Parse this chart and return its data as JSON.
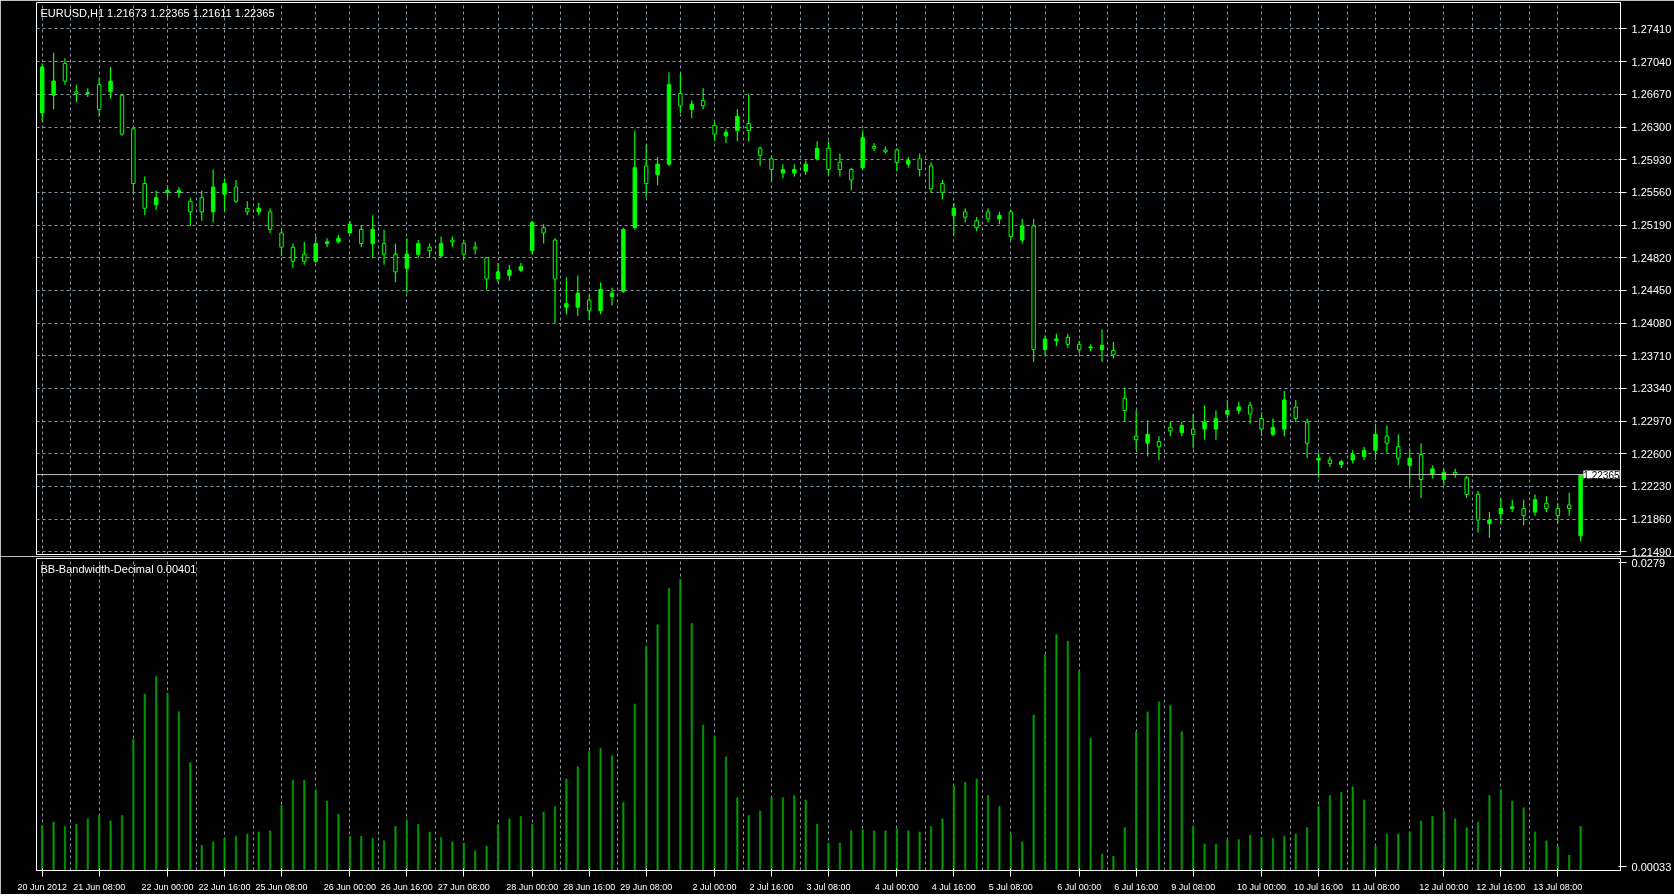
{
  "chart_data": [
    {
      "type": "candlestick",
      "title": "EURUSD,H1  1.21673 1.22365 1.21611 1.22365",
      "color": "#00ff00",
      "categories": [
        null,
        null,
        null,
        null,
        null,
        null,
        null,
        null,
        null,
        null,
        null,
        null,
        null,
        null,
        null,
        null,
        null,
        null,
        null,
        null,
        null,
        null,
        null,
        null,
        null,
        null,
        null,
        null,
        null,
        null,
        null,
        null,
        null,
        null,
        null,
        null,
        null,
        null,
        null,
        null,
        null,
        null,
        null,
        null,
        null,
        null,
        null,
        null,
        null,
        null,
        null,
        null,
        null,
        null,
        null,
        null,
        null,
        null,
        null,
        null,
        null,
        null,
        null,
        null,
        null,
        null,
        null,
        null,
        null,
        null,
        null,
        null,
        null,
        null,
        null,
        null,
        null,
        null,
        null,
        null,
        null,
        null,
        null,
        null,
        null,
        null,
        null,
        null,
        null,
        null,
        null,
        null,
        null,
        null,
        null,
        null,
        null,
        null,
        null,
        null,
        null,
        null,
        null,
        null,
        null,
        null,
        null,
        null,
        null,
        null,
        null,
        null,
        null,
        null,
        null,
        null,
        null,
        null,
        null,
        null,
        null,
        null,
        null,
        null,
        null,
        null,
        null,
        null,
        null,
        null,
        null,
        null,
        null,
        null,
        null,
        null
      ],
      "ohlc": [
        [
          1.2646,
          1.2702,
          1.2636,
          1.2698
        ],
        [
          1.2666,
          1.2714,
          1.265,
          1.2682
        ],
        [
          1.2702,
          1.2708,
          1.2678,
          1.2682
        ],
        [
          1.267,
          1.2678,
          1.2658,
          1.2668
        ],
        [
          1.2668,
          1.2674,
          1.2664,
          1.2669
        ],
        [
          1.2678,
          1.2686,
          1.2642,
          1.265
        ],
        [
          1.267,
          1.2698,
          1.2662,
          1.2682
        ],
        [
          1.2666,
          1.2668,
          1.262,
          1.2622
        ],
        [
          1.2628,
          1.263,
          1.2554,
          1.2566
        ],
        [
          1.2566,
          1.2574,
          1.253,
          1.2538
        ],
        [
          1.2542,
          1.2558,
          1.2536,
          1.255
        ],
        [
          1.2556,
          1.2564,
          1.255,
          1.2558
        ],
        [
          1.2556,
          1.2562,
          1.255,
          1.2558
        ],
        [
          1.2546,
          1.255,
          1.2518,
          1.2534
        ],
        [
          1.255,
          1.2558,
          1.2524,
          1.2534
        ],
        [
          1.2534,
          1.2582,
          1.2522,
          1.2562
        ],
        [
          1.2554,
          1.2572,
          1.2534,
          1.2566
        ],
        [
          1.2562,
          1.257,
          1.2544,
          1.2546
        ],
        [
          1.2538,
          1.2546,
          1.253,
          1.2534
        ],
        [
          1.2534,
          1.2544,
          1.253,
          1.2538
        ],
        [
          1.2534,
          1.2538,
          1.251,
          1.2514
        ],
        [
          1.251,
          1.2514,
          1.2484,
          1.2494
        ],
        [
          1.2494,
          1.2498,
          1.247,
          1.2478
        ],
        [
          1.2486,
          1.25,
          1.2474,
          1.2478
        ],
        [
          1.2478,
          1.2506,
          1.2476,
          1.2498
        ],
        [
          1.2498,
          1.2504,
          1.2494,
          1.25
        ],
        [
          1.25,
          1.2508,
          1.2498,
          1.2504
        ],
        [
          1.251,
          1.2524,
          1.251,
          1.252
        ],
        [
          1.2514,
          1.2518,
          1.2494,
          1.2498
        ],
        [
          1.2498,
          1.253,
          1.2482,
          1.2514
        ],
        [
          1.2498,
          1.2514,
          1.2474,
          1.2486
        ],
        [
          1.2486,
          1.2498,
          1.2454,
          1.2466
        ],
        [
          1.247,
          1.2504,
          1.2442,
          1.2486
        ],
        [
          1.2486,
          1.2502,
          1.2482,
          1.2498
        ],
        [
          1.2494,
          1.2498,
          1.2482,
          1.249
        ],
        [
          1.2484,
          1.2506,
          1.2482,
          1.2498
        ],
        [
          1.2502,
          1.2506,
          1.2494,
          1.25
        ],
        [
          1.2498,
          1.2502,
          1.248,
          1.2486
        ],
        [
          1.2494,
          1.25,
          1.2486,
          1.2492
        ],
        [
          1.2482,
          1.2482,
          1.2446,
          1.2458
        ],
        [
          1.2458,
          1.2476,
          1.2454,
          1.2466
        ],
        [
          1.2462,
          1.2474,
          1.2456,
          1.2468
        ],
        [
          1.2468,
          1.2476,
          1.2466,
          1.2472
        ],
        [
          1.249,
          1.2524,
          1.2486,
          1.2522
        ],
        [
          1.2516,
          1.252,
          1.2498,
          1.251
        ],
        [
          1.2502,
          1.2504,
          1.2408,
          1.2458
        ],
        [
          1.2426,
          1.246,
          1.2418,
          1.243
        ],
        [
          1.2426,
          1.2462,
          1.2416,
          1.2442
        ],
        [
          1.2434,
          1.244,
          1.2412,
          1.2422
        ],
        [
          1.2422,
          1.2454,
          1.2418,
          1.2446
        ],
        [
          1.2438,
          1.2448,
          1.2428,
          1.2442
        ],
        [
          1.2444,
          1.2516,
          1.2442,
          1.2514
        ],
        [
          1.2516,
          1.2626,
          1.2514,
          1.2584
        ],
        [
          1.2586,
          1.261,
          1.255,
          1.2566
        ],
        [
          1.2576,
          1.2596,
          1.2564,
          1.2588
        ],
        [
          1.2588,
          1.2692,
          1.2586,
          1.2678
        ],
        [
          1.2668,
          1.269,
          1.2646,
          1.2654
        ],
        [
          1.265,
          1.266,
          1.264,
          1.2656
        ],
        [
          1.266,
          1.2674,
          1.265,
          1.2654
        ],
        [
          1.2632,
          1.2636,
          1.2614,
          1.2622
        ],
        [
          1.262,
          1.2628,
          1.2612,
          1.2624
        ],
        [
          1.2626,
          1.265,
          1.2614,
          1.2642
        ],
        [
          1.2634,
          1.2668,
          1.2614,
          1.2626
        ],
        [
          1.2606,
          1.2608,
          1.2586,
          1.2598
        ],
        [
          1.2594,
          1.2598,
          1.2568,
          1.2582
        ],
        [
          1.2578,
          1.2588,
          1.2572,
          1.2582
        ],
        [
          1.2578,
          1.2588,
          1.2574,
          1.2582
        ],
        [
          1.258,
          1.2592,
          1.2576,
          1.2588
        ],
        [
          1.2594,
          1.2614,
          1.2592,
          1.2606
        ],
        [
          1.2606,
          1.2614,
          1.2576,
          1.2582
        ],
        [
          1.259,
          1.26,
          1.2574,
          1.2582
        ],
        [
          1.2582,
          1.2584,
          1.2558,
          1.257
        ],
        [
          1.2584,
          1.2626,
          1.2582,
          1.2618
        ],
        [
          1.2608,
          1.2612,
          1.2603,
          1.2606
        ],
        [
          1.2604,
          1.2608,
          1.26,
          1.2602
        ],
        [
          1.2604,
          1.2606,
          1.258,
          1.259
        ],
        [
          1.2588,
          1.2596,
          1.2584,
          1.2592
        ],
        [
          1.2594,
          1.26,
          1.2574,
          1.2582
        ],
        [
          1.2586,
          1.259,
          1.2556,
          1.256
        ],
        [
          1.2566,
          1.257,
          1.2548,
          1.2556
        ],
        [
          1.253,
          1.2544,
          1.2508,
          1.2538
        ],
        [
          1.2534,
          1.2538,
          1.2522,
          1.2528
        ],
        [
          1.2524,
          1.2528,
          1.2512,
          1.2516
        ],
        [
          1.2534,
          1.2538,
          1.2522,
          1.2526
        ],
        [
          1.2526,
          1.2534,
          1.252,
          1.253
        ],
        [
          1.2534,
          1.2536,
          1.2502,
          1.2506
        ],
        [
          1.2502,
          1.2526,
          1.2498,
          1.2518
        ],
        [
          1.2518,
          1.2526,
          1.2364,
          1.2378
        ],
        [
          1.2378,
          1.2394,
          1.2372,
          1.239
        ],
        [
          1.2388,
          1.2396,
          1.2382,
          1.239
        ],
        [
          1.2392,
          1.2396,
          1.238,
          1.2384
        ],
        [
          1.2384,
          1.2388,
          1.2374,
          1.2378
        ],
        [
          1.238,
          1.2384,
          1.2376,
          1.2381
        ],
        [
          1.2378,
          1.2401,
          1.2364,
          1.2383
        ],
        [
          1.2377,
          1.2387,
          1.2368,
          1.2372
        ],
        [
          1.2323,
          1.2335,
          1.2296,
          1.2309
        ],
        [
          1.228,
          1.2309,
          1.2264,
          1.2276
        ],
        [
          1.2272,
          1.2298,
          1.2257,
          1.2282
        ],
        [
          1.2274,
          1.228,
          1.2253,
          1.2268
        ],
        [
          1.229,
          1.2296,
          1.228,
          1.2286
        ],
        [
          1.2284,
          1.2296,
          1.228,
          1.2292
        ],
        [
          1.2288,
          1.2305,
          1.2266,
          1.2282
        ],
        [
          1.2288,
          1.2315,
          1.2276,
          1.2296
        ],
        [
          1.2288,
          1.2309,
          1.2276,
          1.23
        ],
        [
          1.2305,
          1.2321,
          1.23,
          1.2309
        ],
        [
          1.2309,
          1.2319,
          1.2305,
          1.2313
        ],
        [
          1.2315,
          1.2319,
          1.2294,
          1.2305
        ],
        [
          1.23,
          1.2307,
          1.228,
          1.2288
        ],
        [
          1.2282,
          1.23,
          1.228,
          1.229
        ],
        [
          1.2288,
          1.2331,
          1.228,
          1.2321
        ],
        [
          1.2313,
          1.2321,
          1.2296,
          1.23
        ],
        [
          1.2296,
          1.23,
          1.2255,
          1.2272
        ],
        [
          1.2253,
          1.2261,
          1.2233,
          1.2255
        ],
        [
          1.2253,
          1.2257,
          1.2245,
          1.2249
        ],
        [
          1.2248,
          1.2253,
          1.2244,
          1.2251
        ],
        [
          1.2253,
          1.2264,
          1.2249,
          1.2259
        ],
        [
          1.2257,
          1.2268,
          1.2253,
          1.2264
        ],
        [
          1.2264,
          1.2294,
          1.2253,
          1.2282
        ],
        [
          1.228,
          1.2292,
          1.2261,
          1.2272
        ],
        [
          1.2268,
          1.2282,
          1.2247,
          1.2255
        ],
        [
          1.2247,
          1.2266,
          1.2224,
          1.2255
        ],
        [
          1.2259,
          1.2272,
          1.221,
          1.2231
        ],
        [
          1.2237,
          1.2247,
          1.2232,
          1.2243
        ],
        [
          1.2231,
          1.2243,
          1.2224,
          1.2239
        ],
        [
          1.2239,
          1.2243,
          1.2233,
          1.2237
        ],
        [
          1.2233,
          1.2235,
          1.221,
          1.2214
        ],
        [
          1.2214,
          1.2218,
          1.2171,
          1.2185
        ],
        [
          1.2181,
          1.2194,
          1.2165,
          1.2185
        ],
        [
          1.2192,
          1.221,
          1.2181,
          1.2198
        ],
        [
          1.2198,
          1.2208,
          1.2194,
          1.22
        ],
        [
          1.2198,
          1.2208,
          1.2179,
          1.219
        ],
        [
          1.2194,
          1.2214,
          1.219,
          1.2208
        ],
        [
          1.2204,
          1.2212,
          1.2194,
          1.2198
        ],
        [
          1.2198,
          1.2204,
          1.2181,
          1.219
        ],
        [
          1.2202,
          1.2216,
          1.219,
          1.2198
        ],
        [
          1.21673,
          1.22365,
          1.21611,
          1.22365
        ]
      ],
      "ylim": [
        1.2146,
        1.2771
      ],
      "yticks": [
        {
          "value": 1.2741,
          "label": "1.27410"
        },
        {
          "value": 1.2704,
          "label": "1.27040"
        },
        {
          "value": 1.2667,
          "label": "1.26670"
        },
        {
          "value": 1.263,
          "label": "1.26300"
        },
        {
          "value": 1.2593,
          "label": "1.25930"
        },
        {
          "value": 1.2556,
          "label": "1.25560"
        },
        {
          "value": 1.2519,
          "label": "1.25190"
        },
        {
          "value": 1.2482,
          "label": "1.24820"
        },
        {
          "value": 1.2445,
          "label": "1.24450"
        },
        {
          "value": 1.2408,
          "label": "1.24080"
        },
        {
          "value": 1.2371,
          "label": "1.23710"
        },
        {
          "value": 1.2334,
          "label": "1.23340"
        },
        {
          "value": 1.2297,
          "label": "1.22970"
        },
        {
          "value": 1.226,
          "label": "1.22600"
        },
        {
          "value": 1.2223,
          "label": "1.22230"
        },
        {
          "value": 1.2186,
          "label": "1.21860"
        },
        {
          "value": 1.2149,
          "label": "1.21490"
        }
      ],
      "ref_lines": [
        {
          "axis": "y",
          "value": 1.22365,
          "label": "1.22365",
          "color": "#c0c0c0"
        }
      ],
      "grid": true,
      "tick_labels": "y"
    },
    {
      "type": "bar",
      "title": "BB-Bandwidth-Decimal 0.00401",
      "color": "#00a000",
      "categories": [
        "20 Jun 2012",
        null,
        null,
        null,
        null,
        "21 Jun 08:00",
        null,
        null,
        null,
        null,
        null,
        "22 Jun 00:00",
        null,
        null,
        null,
        null,
        "22 Jun 16:00",
        null,
        null,
        null,
        null,
        "25 Jun 08:00",
        null,
        null,
        null,
        null,
        null,
        "26 Jun 00:00",
        null,
        null,
        null,
        null,
        "26 Jun 16:00",
        null,
        null,
        null,
        null,
        "27 Jun 08:00",
        null,
        null,
        null,
        null,
        null,
        "28 Jun 00:00",
        null,
        null,
        null,
        null,
        "28 Jun 16:00",
        null,
        null,
        null,
        null,
        "29 Jun 08:00",
        null,
        null,
        null,
        null,
        null,
        "2 Jul 00:00",
        null,
        null,
        null,
        null,
        "2 Jul 16:00",
        null,
        null,
        null,
        null,
        "3 Jul 08:00",
        null,
        null,
        null,
        null,
        null,
        "4 Jul 00:00",
        null,
        null,
        null,
        null,
        "4 Jul 16:00",
        null,
        null,
        null,
        null,
        "5 Jul 08:00",
        null,
        null,
        null,
        null,
        null,
        "6 Jul 00:00",
        null,
        null,
        null,
        null,
        "6 Jul 16:00",
        null,
        null,
        null,
        null,
        "9 Jul 08:00",
        null,
        null,
        null,
        null,
        null,
        "10 Jul 00:00",
        null,
        null,
        null,
        null,
        "10 Jul 16:00",
        null,
        null,
        null,
        null,
        "11 Jul 08:00",
        null,
        null,
        null,
        null,
        null,
        "12 Jul 00:00",
        null,
        null,
        null,
        null,
        "12 Jul 16:00",
        null,
        null,
        null,
        null,
        "13 Jul 08:00",
        null,
        null
      ],
      "values": [
        0.0041,
        0.0044,
        0.004,
        0.0042,
        0.0047,
        0.005,
        0.0045,
        0.005,
        0.0119,
        0.016,
        0.0176,
        0.0161,
        0.0144,
        0.0098,
        0.0023,
        0.0026,
        0.0029,
        0.0031,
        0.0033,
        0.0035,
        0.0036,
        0.0059,
        0.0082,
        0.0082,
        0.0073,
        0.0063,
        0.0051,
        0.0031,
        0.0031,
        0.0029,
        0.0027,
        0.004,
        0.0045,
        0.0042,
        0.0035,
        0.003,
        0.0026,
        0.0025,
        0.0018,
        0.0022,
        0.0042,
        0.0047,
        0.0049,
        0.0042,
        0.0053,
        0.0058,
        0.0083,
        0.0094,
        0.0108,
        0.0111,
        0.0104,
        0.0062,
        0.0151,
        0.0203,
        0.0223,
        0.0256,
        0.0264,
        0.0224,
        0.0132,
        0.0122,
        0.0103,
        0.0066,
        0.005,
        0.0054,
        0.0066,
        0.0066,
        0.0068,
        0.0064,
        0.0042,
        0.0025,
        0.0025,
        0.0036,
        0.0037,
        0.0036,
        0.0036,
        0.0038,
        0.0036,
        0.0035,
        0.004,
        0.0047,
        0.0077,
        0.008,
        0.0083,
        0.0068,
        0.0058,
        0.0034,
        0.0026,
        0.0141,
        0.0196,
        0.0214,
        0.0208,
        0.0181,
        0.012,
        0.0015,
        0.0013,
        0.0039,
        0.0126,
        0.0144,
        0.0153,
        0.015,
        0.0126,
        0.004,
        0.0024,
        0.0024,
        0.0028,
        0.0028,
        0.0032,
        0.003,
        0.0029,
        0.0031,
        0.0033,
        0.0039,
        0.0058,
        0.0068,
        0.0071,
        0.0076,
        0.0064,
        0.0022,
        0.0033,
        0.0033,
        0.0035,
        0.0045,
        0.0049,
        0.0054,
        0.0047,
        0.0039,
        0.0044,
        0.0068,
        0.0073,
        0.0063,
        0.0057,
        0.0035,
        0.0027,
        0.0022,
        0.0014,
        0.004
      ],
      "ylim": [
        0,
        0.0283
      ],
      "yticks": [
        {
          "value": 0.0279,
          "label": "0.0279"
        },
        {
          "value": 0.00033,
          "label": "0.00033"
        }
      ],
      "grid": "x"
    }
  ]
}
